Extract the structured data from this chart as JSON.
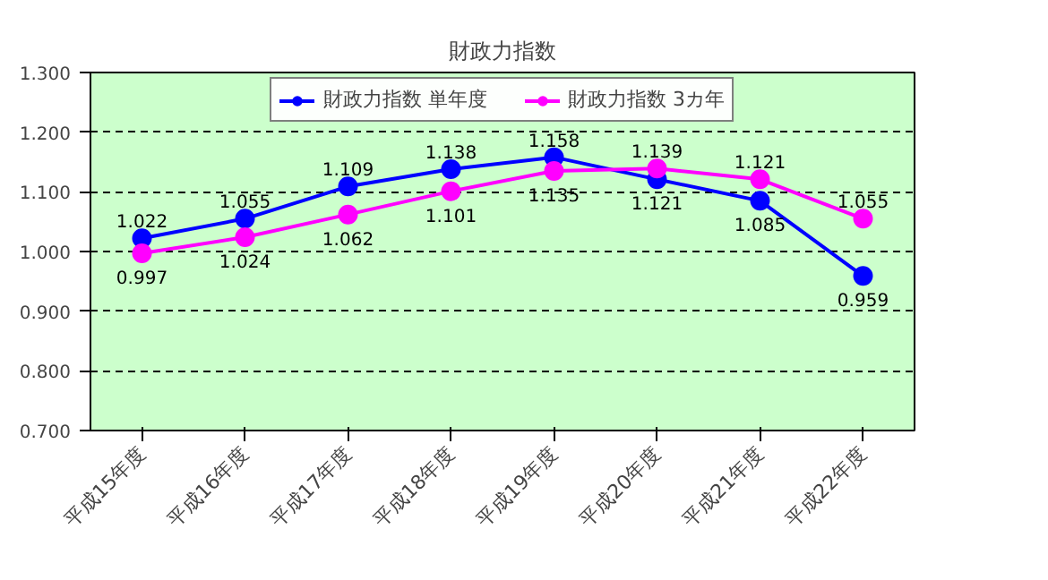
{
  "chart_data": {
    "type": "line",
    "title": "財政力指数",
    "categories": [
      "平成15年度",
      "平成16年度",
      "平成17年度",
      "平成18年度",
      "平成19年度",
      "平成20年度",
      "平成21年度",
      "平成22年度"
    ],
    "series": [
      {
        "name": "財政力指数 単年度",
        "color": "#0000ff",
        "values": [
          1.022,
          1.055,
          1.109,
          1.138,
          1.158,
          1.121,
          1.085,
          0.959
        ]
      },
      {
        "name": "財政力指数 3カ年",
        "color": "#ff00ff",
        "values": [
          0.997,
          1.024,
          1.062,
          1.101,
          1.135,
          1.139,
          1.121,
          1.055
        ]
      }
    ],
    "ylim": [
      0.7,
      1.3
    ],
    "yticks": [
      {
        "value": 0.7,
        "label": "0.700"
      },
      {
        "value": 0.8,
        "label": "0.800"
      },
      {
        "value": 0.9,
        "label": "0.900"
      },
      {
        "value": 1.0,
        "label": "1.000"
      },
      {
        "value": 1.1,
        "label": "1.100"
      },
      {
        "value": 1.2,
        "label": "1.200"
      },
      {
        "value": 1.3,
        "label": "1.300"
      }
    ],
    "grid": "y",
    "legend": "top",
    "marker": "circle",
    "line_style": "solid",
    "data_labels": true
  }
}
